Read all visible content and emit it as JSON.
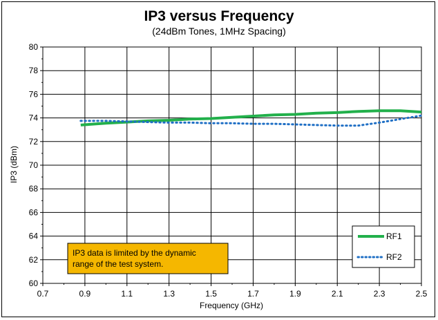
{
  "chart_data": {
    "type": "line",
    "title": "IP3 versus Frequency",
    "subtitle": "(24dBm Tones, 1MHz Spacing)",
    "xlabel": "Frequency (GHz)",
    "ylabel": "IP3 (dBm)",
    "xlim": [
      0.7,
      2.5
    ],
    "ylim": [
      60,
      80
    ],
    "xticks": [
      0.7,
      0.9,
      1.1,
      1.3,
      1.5,
      1.7,
      1.9,
      2.1,
      2.3,
      2.5
    ],
    "xtick_labels": [
      "0.7",
      "0.9",
      "1.1",
      "1.3",
      "1.5",
      "1.7",
      "1.9",
      "2.1",
      "2.3",
      "2.5"
    ],
    "yticks": [
      60,
      62,
      64,
      66,
      68,
      70,
      72,
      74,
      76,
      78,
      80
    ],
    "ytick_labels": [
      "60",
      "62",
      "64",
      "66",
      "68",
      "70",
      "72",
      "74",
      "76",
      "78",
      "80"
    ],
    "grid": true,
    "legend_position": "bottom-right",
    "series": [
      {
        "name": "RF1",
        "color": "#22b04b",
        "style": "solid",
        "x": [
          0.88,
          1.0,
          1.1,
          1.2,
          1.3,
          1.4,
          1.5,
          1.6,
          1.7,
          1.8,
          1.9,
          2.0,
          2.1,
          2.2,
          2.3,
          2.4,
          2.5
        ],
        "y": [
          73.4,
          73.55,
          73.65,
          73.75,
          73.8,
          73.9,
          73.95,
          74.05,
          74.15,
          74.25,
          74.3,
          74.4,
          74.45,
          74.55,
          74.6,
          74.6,
          74.5
        ]
      },
      {
        "name": "RF2",
        "color": "#1f6fc5",
        "style": "dotted",
        "x": [
          0.88,
          1.0,
          1.1,
          1.2,
          1.3,
          1.4,
          1.5,
          1.6,
          1.7,
          1.8,
          1.9,
          2.0,
          2.1,
          2.2,
          2.3,
          2.4,
          2.5
        ],
        "y": [
          73.75,
          73.75,
          73.7,
          73.65,
          73.6,
          73.6,
          73.55,
          73.55,
          73.5,
          73.5,
          73.45,
          73.4,
          73.35,
          73.35,
          73.6,
          73.9,
          74.2
        ]
      }
    ],
    "annotation": {
      "text_line1": "IP3 data is limited by the dynamic",
      "text_line2": "range of the test system.",
      "background": "#f5b700"
    }
  }
}
